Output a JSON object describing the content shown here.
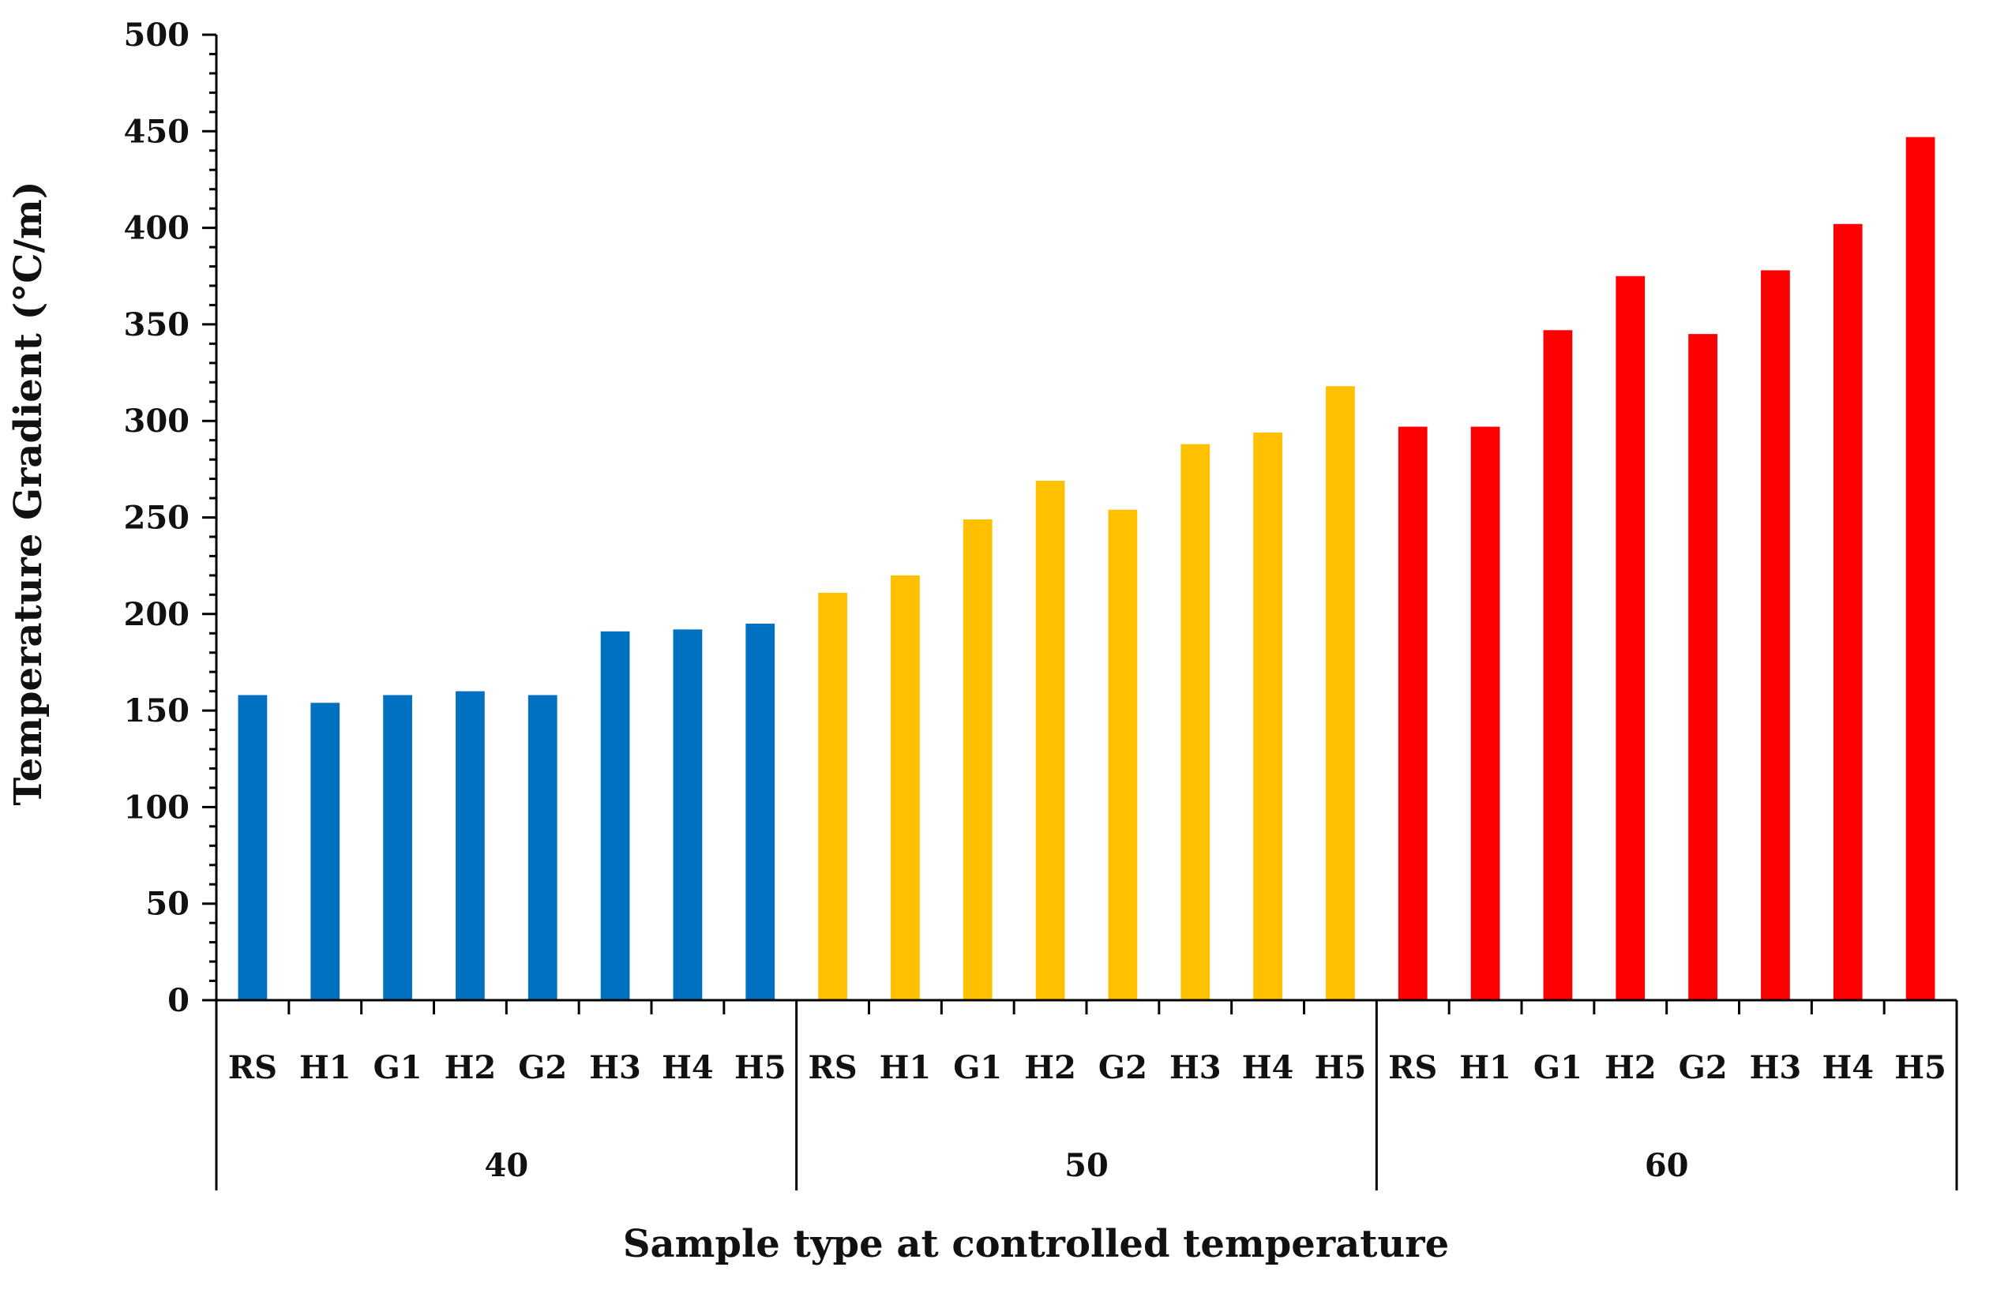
{
  "chart_data": {
    "type": "bar",
    "title": "",
    "xlabel": "Sample type at controlled temperature",
    "ylabel": "Temperature Gradient (°C/m)",
    "ylim": [
      0,
      500
    ],
    "yticks": [
      0,
      50,
      100,
      150,
      200,
      250,
      300,
      350,
      400,
      450,
      500
    ],
    "ytick_labels": [
      "0",
      "50",
      "100",
      "150",
      "200",
      "250",
      "300",
      "350",
      "400",
      "450",
      "500"
    ],
    "grid": false,
    "groups": [
      {
        "label": "40",
        "color": "#0070C0",
        "categories": [
          "RS",
          "H1",
          "G1",
          "H2",
          "G2",
          "H3",
          "H4",
          "H5"
        ],
        "values": [
          158,
          154,
          158,
          160,
          158,
          191,
          192,
          195
        ]
      },
      {
        "label": "50",
        "color": "#FFC000",
        "categories": [
          "RS",
          "H1",
          "G1",
          "H2",
          "G2",
          "H3",
          "H4",
          "H5"
        ],
        "values": [
          211,
          220,
          249,
          269,
          254,
          288,
          294,
          318
        ]
      },
      {
        "label": "60",
        "color": "#FF0000",
        "categories": [
          "RS",
          "H1",
          "G1",
          "H2",
          "G2",
          "H3",
          "H4",
          "H5"
        ],
        "values": [
          297,
          297,
          347,
          375,
          345,
          378,
          402,
          447
        ]
      }
    ]
  }
}
